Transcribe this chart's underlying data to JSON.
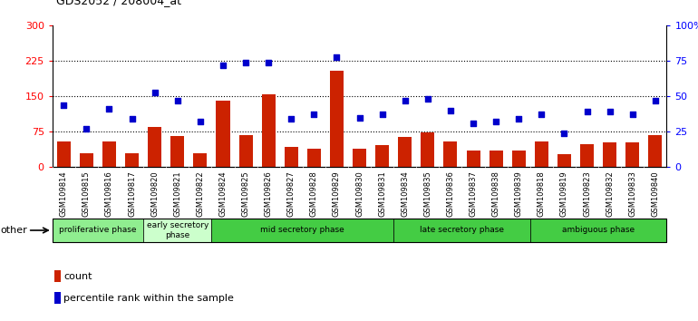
{
  "title": "GDS2052 / 208004_at",
  "samples": [
    "GSM109814",
    "GSM109815",
    "GSM109816",
    "GSM109817",
    "GSM109820",
    "GSM109821",
    "GSM109822",
    "GSM109824",
    "GSM109825",
    "GSM109826",
    "GSM109827",
    "GSM109828",
    "GSM109829",
    "GSM109830",
    "GSM109831",
    "GSM109834",
    "GSM109835",
    "GSM109836",
    "GSM109837",
    "GSM109838",
    "GSM109839",
    "GSM109818",
    "GSM109819",
    "GSM109823",
    "GSM109832",
    "GSM109833",
    "GSM109840"
  ],
  "count": [
    55,
    30,
    55,
    30,
    85,
    65,
    30,
    140,
    68,
    155,
    42,
    38,
    205,
    38,
    47,
    63,
    73,
    55,
    35,
    35,
    35,
    55,
    28,
    48,
    53,
    53,
    68
  ],
  "percentile": [
    44,
    27,
    41,
    34,
    53,
    47,
    32,
    72,
    74,
    74,
    34,
    37,
    78,
    35,
    37,
    47,
    48,
    40,
    31,
    32,
    34,
    37,
    24,
    39,
    39,
    37,
    47
  ],
  "phase_data": [
    {
      "label": "proliferative phase",
      "start": 0,
      "end": 4,
      "color": "#90EE90"
    },
    {
      "label": "early secretory\nphase",
      "start": 4,
      "end": 7,
      "color": "#ccffcc"
    },
    {
      "label": "mid secretory phase",
      "start": 7,
      "end": 15,
      "color": "#44cc44"
    },
    {
      "label": "late secretory phase",
      "start": 15,
      "end": 21,
      "color": "#44cc44"
    },
    {
      "label": "ambiguous phase",
      "start": 21,
      "end": 27,
      "color": "#44cc44"
    }
  ],
  "ylim_left": [
    0,
    300
  ],
  "ylim_right": [
    0,
    100
  ],
  "yticks_left": [
    0,
    75,
    150,
    225,
    300
  ],
  "yticks_right": [
    0,
    25,
    50,
    75,
    100
  ],
  "ytick_labels_right": [
    "0",
    "25",
    "50",
    "75",
    "100%"
  ],
  "bar_color": "#cc2200",
  "scatter_color": "#0000cc",
  "hline_values": [
    75,
    150,
    225
  ],
  "plot_bg": "#ffffff",
  "tick_label_bg": "#d0d0d0"
}
